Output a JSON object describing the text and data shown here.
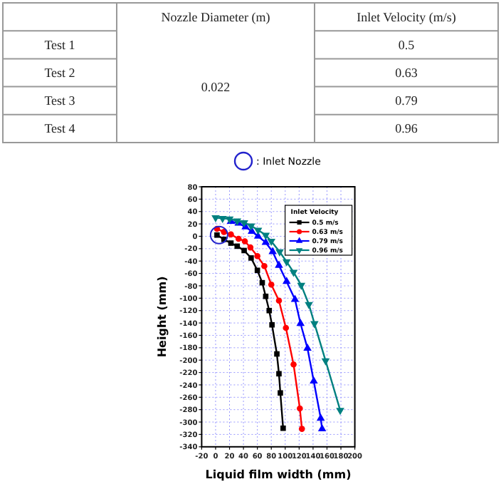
{
  "chart_data": [
    {
      "type": "other",
      "categories": [
        "Test 1",
        "Test 2",
        "Test 3",
        "Test 4"
      ],
      "annotations": [
        "Nozzle Diameter (m)",
        "Inlet Velocity (m/s)",
        "0.022"
      ],
      "values": [
        0.5,
        0.63,
        0.79,
        0.96
      ],
      "data_labels": true
    },
    {
      "type": "line",
      "xlabel": "Liquid film width (mm)",
      "ylabel": "Height (mm)",
      "legend_title": "Inlet Velocity",
      "legend": "top right",
      "grid": true,
      "line_style": "solid",
      "xlim": [
        -20,
        200
      ],
      "xticks": [
        -20,
        0,
        20,
        40,
        60,
        80,
        100,
        120,
        140,
        160,
        180,
        200
      ],
      "ylim": [
        -340,
        80
      ],
      "yticks": [
        -340,
        -320,
        -300,
        -280,
        -260,
        -240,
        -220,
        -200,
        -180,
        -160,
        -140,
        -120,
        -100,
        -80,
        -60,
        -40,
        -20,
        0,
        20,
        40,
        60,
        80
      ],
      "annotations": [
        ": Inlet Nozzle"
      ],
      "series": [
        {
          "name": "0.5 m/s",
          "color": "#000000",
          "marker": "square",
          "x": [
            2,
            12,
            22,
            31,
            41,
            51,
            60,
            67,
            72,
            77,
            81,
            88,
            91,
            93,
            97
          ],
          "values": [
            2,
            -5,
            -11,
            -16,
            -23,
            -35,
            -55,
            -75,
            -97,
            -120,
            -143,
            -190,
            -222,
            -253,
            -310
          ]
        },
        {
          "name": "0.63 m/s",
          "color": "#ff0000",
          "marker": "circle",
          "x": [
            2,
            12,
            22,
            33,
            42,
            50,
            60,
            70,
            80,
            91,
            101,
            112,
            121,
            124
          ],
          "values": [
            12,
            7,
            3,
            -4,
            -8,
            -18,
            -32,
            -48,
            -78,
            -104,
            -148,
            -207,
            -278,
            -311
          ]
        },
        {
          "name": "0.79 m/s",
          "color": "#0000ff",
          "marker": "triangle",
          "x": [
            22,
            33,
            43,
            52,
            61,
            72,
            82,
            91,
            102,
            114,
            122,
            132,
            141,
            151,
            153
          ],
          "values": [
            24,
            21,
            15,
            8,
            0,
            -10,
            -25,
            -47,
            -73,
            -102,
            -141,
            -181,
            -234,
            -294,
            -311
          ]
        },
        {
          "name": "0.96 m/s",
          "color": "#008080",
          "marker": "triangle-down",
          "x": [
            0,
            10,
            20,
            31,
            41,
            51,
            61,
            72,
            80,
            92,
            102,
            112,
            123,
            134,
            142,
            158,
            179
          ],
          "values": [
            30,
            29,
            28,
            25,
            22,
            17,
            10,
            2,
            -8,
            -25,
            -41,
            -58,
            -79,
            -110,
            -141,
            -201,
            -281
          ]
        }
      ]
    }
  ]
}
